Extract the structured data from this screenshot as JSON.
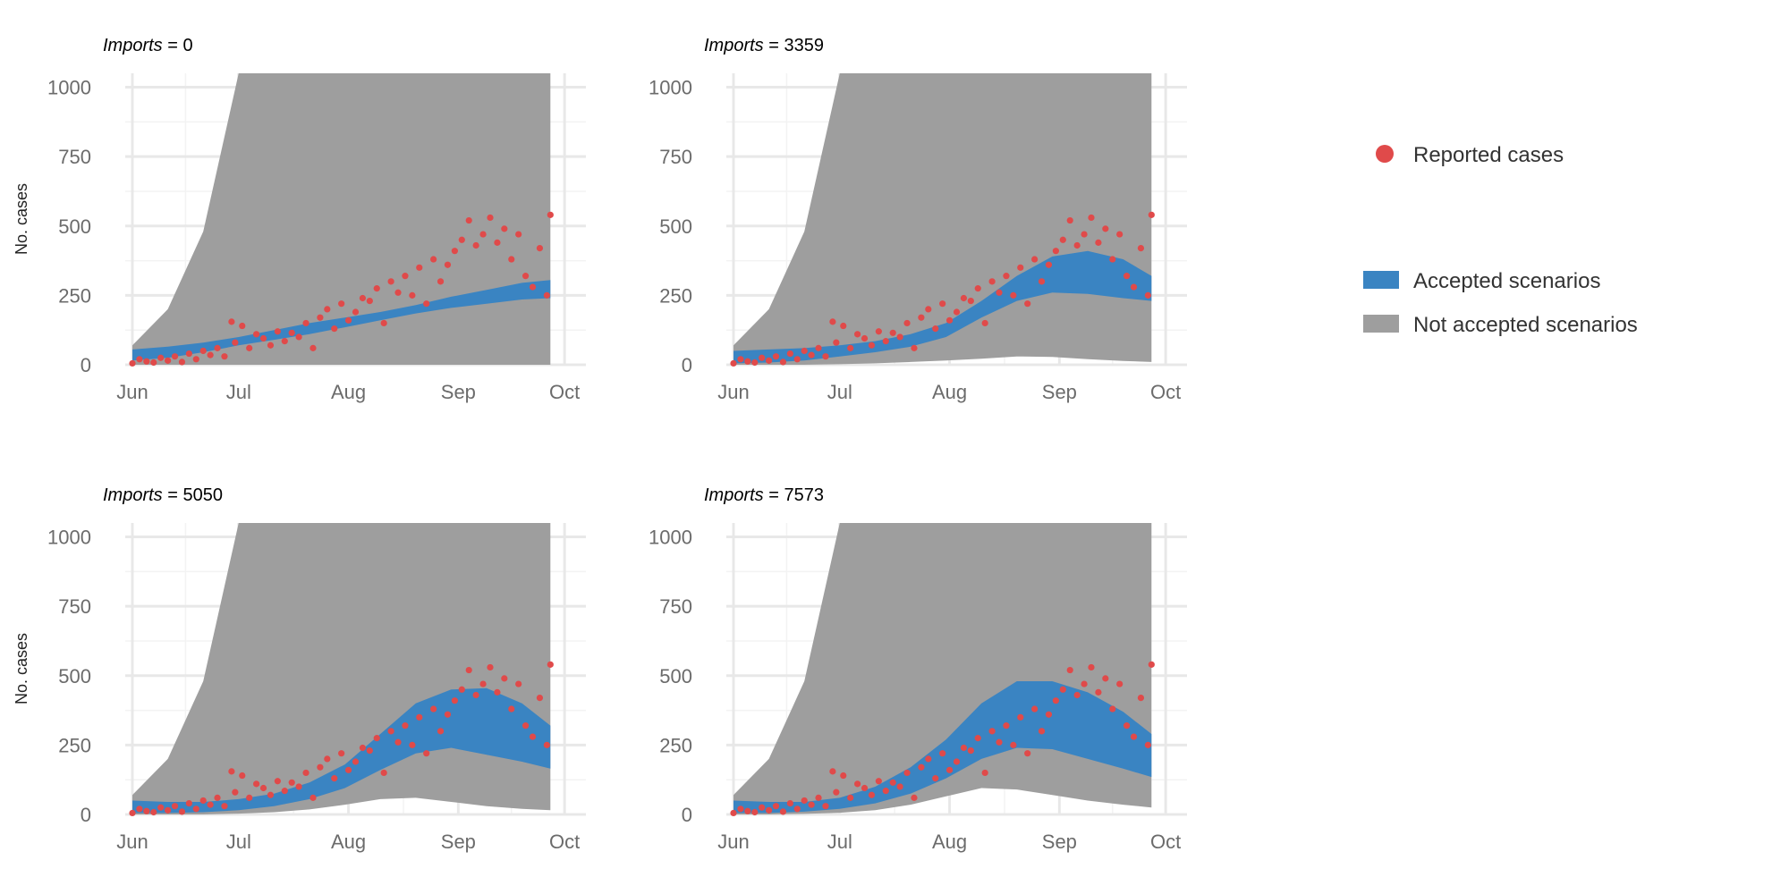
{
  "colors": {
    "accepted": "#3a84c2",
    "not_accepted": "#9e9e9e",
    "reported": "#e04a4a",
    "grid_major": "#e8e8e8",
    "grid_minor": "#f3f3f3"
  },
  "legend": {
    "reported_label": "Reported cases",
    "accepted_label": "Accepted scenarios",
    "not_accepted_label": "Not accepted scenarios"
  },
  "chart_data": [
    {
      "type": "area",
      "title_italic": "Imports",
      "title_rest": " = 0",
      "ylabel": "No. cases",
      "xlabel": "",
      "ylim": [
        0,
        1050
      ],
      "yticks": [
        0,
        250,
        500,
        750,
        1000
      ],
      "xticks": [
        "Jun",
        "Jul",
        "Aug",
        "Sep",
        "Oct"
      ],
      "accepted_band": {
        "day": [
          0,
          10,
          20,
          30,
          40,
          50,
          60,
          70,
          80,
          90,
          100,
          110,
          118
        ],
        "lower": [
          15,
          25,
          45,
          70,
          90,
          110,
          135,
          160,
          185,
          205,
          220,
          235,
          240
        ],
        "upper": [
          55,
          65,
          80,
          100,
          125,
          150,
          170,
          190,
          215,
          245,
          270,
          295,
          305
        ]
      },
      "not_accepted_band": {
        "day": [
          0,
          10,
          20,
          30,
          40,
          50,
          60,
          70,
          80,
          90,
          100,
          110,
          118
        ],
        "lower": [
          0,
          0,
          0,
          0,
          0,
          0,
          0,
          0,
          0,
          0,
          0,
          0,
          0
        ],
        "upper": [
          70,
          200,
          480,
          1050,
          1050,
          1050,
          1050,
          1050,
          1050,
          1050,
          1050,
          1050,
          1050
        ]
      }
    },
    {
      "type": "area",
      "title_italic": "Imports",
      "title_rest": " = 3359",
      "ylabel": "",
      "xlabel": "",
      "ylim": [
        0,
        1050
      ],
      "yticks": [
        0,
        250,
        500,
        750,
        1000
      ],
      "xticks": [
        "Jun",
        "Jul",
        "Aug",
        "Sep",
        "Oct"
      ],
      "accepted_band": {
        "day": [
          0,
          10,
          20,
          30,
          40,
          50,
          60,
          70,
          80,
          90,
          100,
          110,
          118
        ],
        "lower": [
          5,
          8,
          15,
          30,
          45,
          65,
          100,
          170,
          230,
          260,
          255,
          240,
          230
        ],
        "upper": [
          50,
          55,
          60,
          70,
          85,
          110,
          150,
          230,
          320,
          390,
          410,
          380,
          320
        ]
      },
      "not_accepted_band": {
        "day": [
          0,
          10,
          20,
          30,
          40,
          50,
          60,
          70,
          80,
          90,
          100,
          110,
          118
        ],
        "lower": [
          0,
          0,
          0,
          2,
          5,
          10,
          15,
          22,
          30,
          28,
          20,
          14,
          10
        ],
        "upper": [
          70,
          200,
          480,
          1050,
          1050,
          1050,
          1050,
          1050,
          1050,
          1050,
          1050,
          1050,
          1050
        ]
      }
    },
    {
      "type": "area",
      "title_italic": "Imports",
      "title_rest": " = 5050",
      "ylabel": "No. cases",
      "xlabel": "",
      "ylim": [
        0,
        1050
      ],
      "yticks": [
        0,
        250,
        500,
        750,
        1000
      ],
      "xticks": [
        "Jun",
        "Jul",
        "Aug",
        "Sep",
        "Oct"
      ],
      "accepted_band": {
        "day": [
          0,
          10,
          20,
          30,
          40,
          50,
          60,
          70,
          80,
          90,
          100,
          110,
          118
        ],
        "lower": [
          5,
          5,
          8,
          15,
          30,
          55,
          95,
          160,
          220,
          240,
          215,
          190,
          165
        ],
        "upper": [
          50,
          45,
          45,
          55,
          75,
          115,
          180,
          290,
          400,
          450,
          455,
          400,
          320
        ]
      },
      "not_accepted_band": {
        "day": [
          0,
          10,
          20,
          30,
          40,
          50,
          60,
          70,
          80,
          90,
          100,
          110,
          118
        ],
        "lower": [
          0,
          0,
          0,
          3,
          8,
          18,
          35,
          55,
          60,
          45,
          30,
          20,
          15
        ],
        "upper": [
          70,
          200,
          480,
          1050,
          1050,
          1050,
          1050,
          1050,
          1050,
          1050,
          1050,
          1050,
          1050
        ]
      }
    },
    {
      "type": "area",
      "title_italic": "Imports",
      "title_rest": " = 7573",
      "ylabel": "",
      "xlabel": "",
      "ylim": [
        0,
        1050
      ],
      "yticks": [
        0,
        250,
        500,
        750,
        1000
      ],
      "xticks": [
        "Jun",
        "Jul",
        "Aug",
        "Sep",
        "Oct"
      ],
      "accepted_band": {
        "day": [
          0,
          10,
          20,
          30,
          40,
          50,
          60,
          70,
          80,
          90,
          100,
          110,
          118
        ],
        "lower": [
          5,
          5,
          10,
          20,
          40,
          75,
          130,
          200,
          240,
          235,
          200,
          165,
          135
        ],
        "upper": [
          50,
          45,
          45,
          60,
          100,
          170,
          270,
          400,
          480,
          480,
          440,
          370,
          290
        ]
      },
      "not_accepted_band": {
        "day": [
          0,
          10,
          20,
          30,
          40,
          50,
          60,
          70,
          80,
          90,
          100,
          110,
          118
        ],
        "lower": [
          0,
          0,
          2,
          6,
          15,
          35,
          65,
          95,
          90,
          70,
          50,
          35,
          25
        ],
        "upper": [
          70,
          200,
          480,
          1050,
          1050,
          1050,
          1050,
          1050,
          1050,
          1050,
          1050,
          1050,
          1050
        ]
      }
    }
  ],
  "reported_cases": {
    "day": [
      0,
      2,
      4,
      6,
      8,
      10,
      12,
      14,
      16,
      18,
      20,
      22,
      24,
      26,
      28,
      29,
      31,
      33,
      35,
      37,
      39,
      41,
      43,
      45,
      47,
      49,
      51,
      53,
      55,
      57,
      59,
      61,
      63,
      65,
      67,
      69,
      71,
      73,
      75,
      77,
      79,
      81,
      83,
      85,
      87,
      89,
      91,
      93,
      95,
      97,
      99,
      101,
      103,
      105,
      107,
      109,
      111,
      113,
      115,
      117,
      118
    ],
    "cases": [
      5,
      20,
      12,
      8,
      25,
      15,
      30,
      10,
      40,
      20,
      50,
      35,
      60,
      30,
      155,
      80,
      140,
      60,
      110,
      95,
      70,
      120,
      85,
      115,
      100,
      150,
      60,
      170,
      200,
      130,
      220,
      160,
      190,
      240,
      230,
      275,
      150,
      300,
      260,
      320,
      250,
      350,
      220,
      380,
      300,
      360,
      410,
      450,
      520,
      430,
      470,
      530,
      440,
      490,
      380,
      470,
      320,
      280,
      420,
      250,
      540
    ]
  }
}
